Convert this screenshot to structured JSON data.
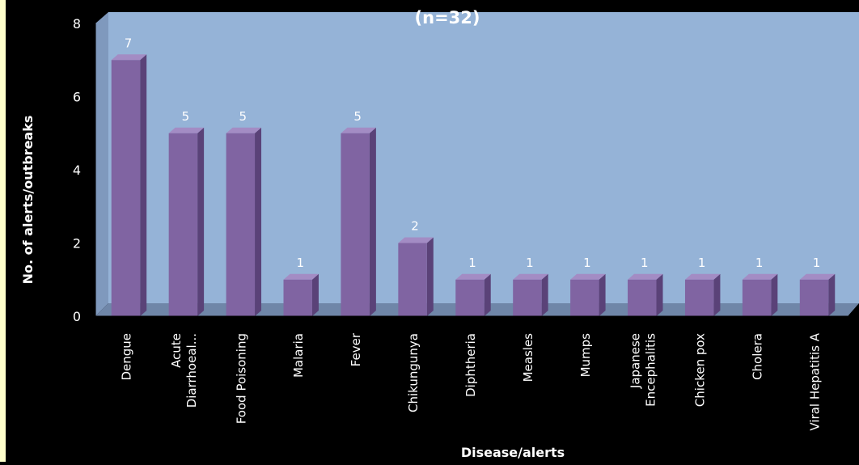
{
  "chart_data": {
    "type": "bar",
    "title": "(n=32)",
    "xlabel": "Disease/alerts",
    "ylabel": "No. of alerts/outbreaks",
    "ylim": [
      0,
      8
    ],
    "yticks": [
      0,
      2,
      4,
      6,
      8
    ],
    "grid": false,
    "legend": "none",
    "categories": [
      "Dengue",
      [
        "Acute",
        "Diarrhoeal..."
      ],
      "Food Poisoning",
      "Malaria",
      "Fever",
      "Chikungunya",
      "Diphtheria",
      "Measles",
      "Mumps",
      [
        "Japanese",
        "Encephalitis"
      ],
      "Chicken pox",
      "Cholera",
      "Viral Hepatitis A"
    ],
    "values": [
      7,
      5,
      5,
      1,
      5,
      2,
      1,
      1,
      1,
      1,
      1,
      1,
      1
    ],
    "colors": {
      "bar_front": "#8064a2",
      "bar_side": "#5a4278",
      "bar_top": "#a38cc4",
      "plot_back": "#95b3d7",
      "plot_wall": "#7f99bd",
      "floor": "#6f86a8",
      "text": "#ffffff",
      "page_background": "#000000",
      "left_strip": "#ffffcc"
    }
  }
}
